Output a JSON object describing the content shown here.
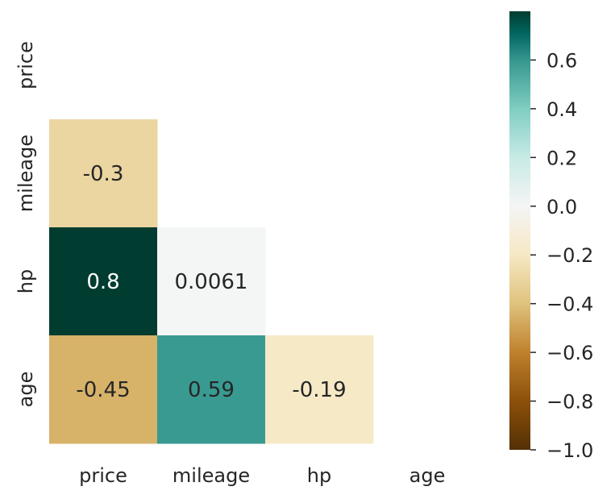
{
  "chart_data": {
    "type": "heatmap",
    "title": "",
    "xlabel": "",
    "ylabel": "",
    "x_categories": [
      "price",
      "mileage",
      "hp",
      "age"
    ],
    "y_categories": [
      "price",
      "mileage",
      "hp",
      "age"
    ],
    "mask": "upper-triangle-including-diagonal",
    "cells": [
      {
        "row": "mileage",
        "col": "price",
        "value": -0.3,
        "label": "-0.3"
      },
      {
        "row": "hp",
        "col": "price",
        "value": 0.8,
        "label": "0.8"
      },
      {
        "row": "hp",
        "col": "mileage",
        "value": 0.0061,
        "label": "0.0061"
      },
      {
        "row": "age",
        "col": "price",
        "value": -0.45,
        "label": "-0.45"
      },
      {
        "row": "age",
        "col": "mileage",
        "value": 0.59,
        "label": "0.59"
      },
      {
        "row": "age",
        "col": "hp",
        "value": -0.19,
        "label": "-0.19"
      }
    ],
    "colormap": "BrBG",
    "color_range": [
      -1.0,
      0.8
    ],
    "colorbar": {
      "ticks": [
        0.6,
        0.4,
        0.2,
        0.0,
        -0.2,
        -0.4,
        -0.6,
        -0.8,
        -1.0
      ],
      "tick_labels": [
        "0.6",
        "0.4",
        "0.2",
        "0.0",
        "−0.2",
        "−0.4",
        "−0.6",
        "−0.8",
        "−1.0"
      ],
      "placement": "right"
    },
    "grid": false
  }
}
